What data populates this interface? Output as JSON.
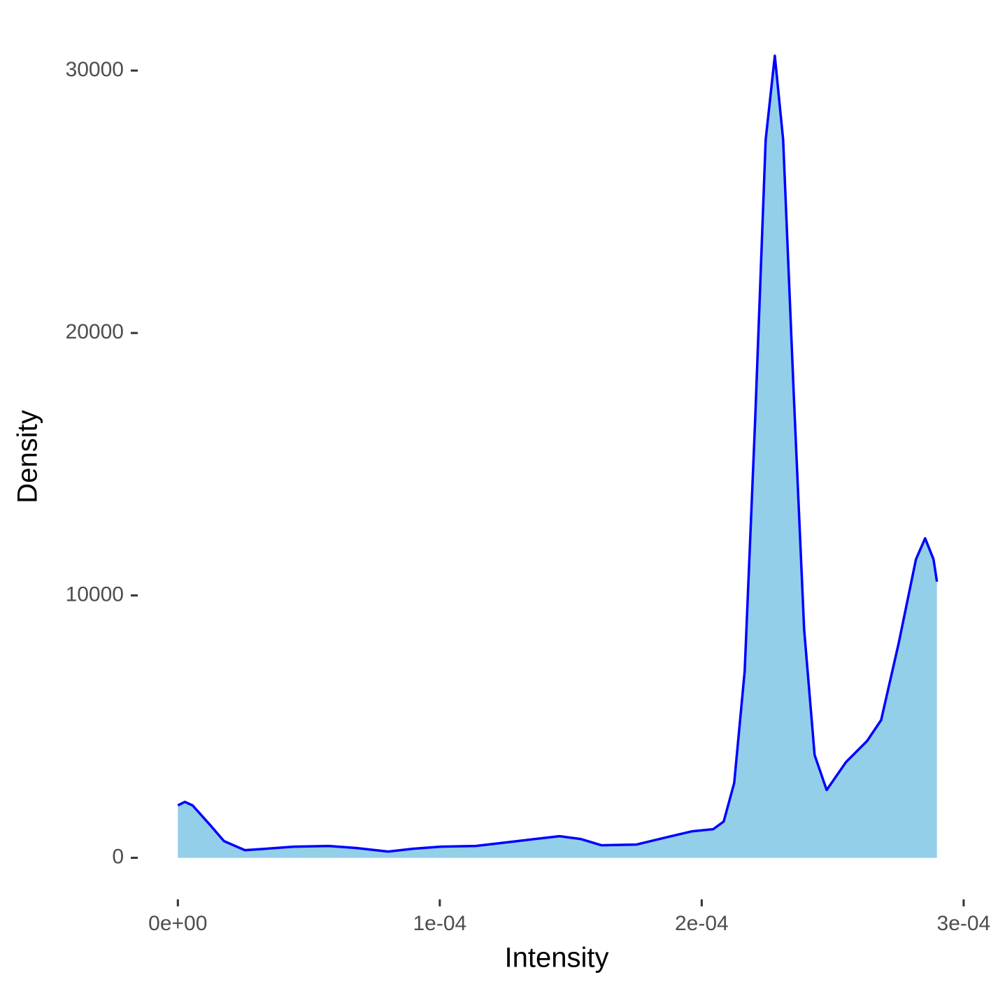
{
  "chart_data": {
    "type": "area",
    "xlabel": "Intensity",
    "ylabel": "Density",
    "x": [
      0,
      2.7e-06,
      5.6e-06,
      1.23e-05,
      1.76e-05,
      2.56e-05,
      3.36e-05,
      4.43e-05,
      5.76e-05,
      6.83e-05,
      8.03e-05,
      8.97e-05,
      0.0001003,
      0.0001137,
      0.0001297,
      0.0001457,
      0.0001537,
      0.0001617,
      0.0001751,
      0.0001884,
      0.0001964,
      0.0002044,
      0.0002084,
      0.0002124,
      0.0002164,
      0.0002204,
      0.0002244,
      0.0002279,
      0.0002311,
      0.0002351,
      0.0002391,
      0.0002431,
      0.0002477,
      0.0002551,
      0.0002631,
      0.0002685,
      0.0002752,
      0.0002818,
      0.0002853,
      0.0002885,
      0.0002898
    ],
    "values": [
      1998,
      2132,
      1998,
      1252,
      640,
      293,
      346,
      426,
      453,
      373,
      240,
      346,
      426,
      453,
      640,
      826,
      719,
      480,
      506,
      826,
      1013,
      1092,
      1386,
      2851,
      7114,
      16707,
      27365,
      30562,
      27365,
      17773,
      8713,
      3917,
      2585,
      3650,
      4450,
      5249,
      8180,
      11377,
      12177,
      11377,
      10525
    ],
    "fill": "#94cfea",
    "color": "#0000ff",
    "xlim": [
      -1.45e-05,
      0.0003043
    ],
    "ylim": [
      -1530,
      32130
    ],
    "xticks": [
      {
        "value": 0,
        "label": "0e+00"
      },
      {
        "value": 0.0001,
        "label": "1e-04"
      },
      {
        "value": 0.0002,
        "label": "2e-04"
      },
      {
        "value": 0.0003,
        "label": "3e-04"
      }
    ],
    "yticks": [
      0,
      10000,
      20000,
      30000
    ]
  }
}
